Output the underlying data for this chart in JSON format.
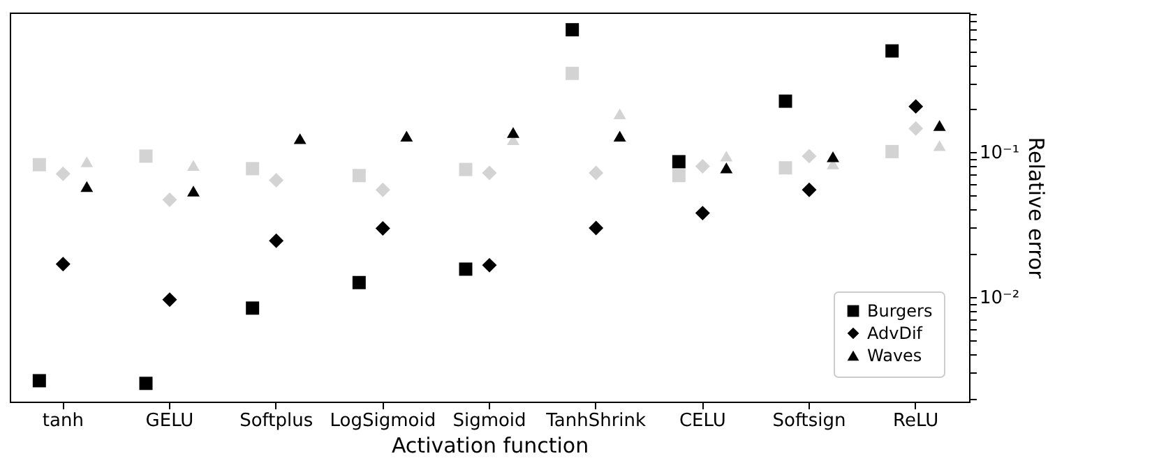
{
  "chart_data": {
    "type": "scatter",
    "xlabel": "Activation function",
    "ylabel": "Relative error",
    "categories": [
      "tanh",
      "GELU",
      "Softplus",
      "LogSigmoid",
      "Sigmoid",
      "TanhShrink",
      "CELU",
      "Softsign",
      "ReLU"
    ],
    "log": "y",
    "ylim": [
      0.0019,
      0.92
    ],
    "yticks": [
      {
        "value": 0.002,
        "label": null
      },
      {
        "value": 0.003,
        "label": null
      },
      {
        "value": 0.004,
        "label": null
      },
      {
        "value": 0.005,
        "label": null
      },
      {
        "value": 0.006,
        "label": null
      },
      {
        "value": 0.007,
        "label": null
      },
      {
        "value": 0.008,
        "label": null
      },
      {
        "value": 0.009,
        "label": null
      },
      {
        "value": 0.01,
        "label": "10⁻²"
      },
      {
        "value": 0.02,
        "label": null
      },
      {
        "value": 0.03,
        "label": null
      },
      {
        "value": 0.04,
        "label": null
      },
      {
        "value": 0.05,
        "label": null
      },
      {
        "value": 0.06,
        "label": null
      },
      {
        "value": 0.07,
        "label": null
      },
      {
        "value": 0.08,
        "label": null
      },
      {
        "value": 0.09,
        "label": null
      },
      {
        "value": 0.1,
        "label": "10⁻¹"
      },
      {
        "value": 0.2,
        "label": null
      },
      {
        "value": 0.3,
        "label": null
      },
      {
        "value": 0.4,
        "label": null
      },
      {
        "value": 0.5,
        "label": null
      },
      {
        "value": 0.6,
        "label": null
      },
      {
        "value": 0.7,
        "label": null
      },
      {
        "value": 0.8,
        "label": null
      },
      {
        "value": 0.9,
        "label": null
      }
    ],
    "grid": false,
    "legend": "bottom right",
    "series": [
      {
        "color": "#d3d3d3",
        "marker": "square",
        "values": [
          0.082,
          0.094,
          0.077,
          0.069,
          0.076,
          0.35,
          0.069,
          0.078,
          0.101
        ]
      },
      {
        "color": "#d3d3d3",
        "marker": "diamond",
        "values": [
          0.071,
          0.047,
          0.064,
          0.055,
          0.072,
          0.072,
          0.08,
          0.094,
          0.146
        ]
      },
      {
        "color": "#d3d3d3",
        "marker": "triangle",
        "values": [
          0.086,
          0.081,
          null,
          null,
          0.122,
          0.184,
          0.094,
          0.083,
          0.111
        ]
      },
      {
        "name": "Burgers",
        "color": "#000000",
        "marker": "square",
        "values": [
          0.00265,
          0.00254,
          0.0084,
          0.0126,
          0.0156,
          0.7,
          0.086,
          0.225,
          0.5
        ]
      },
      {
        "name": "AdvDif",
        "color": "#000000",
        "marker": "diamond",
        "values": [
          0.0169,
          0.0096,
          0.0245,
          0.0298,
          0.0166,
          0.03,
          0.038,
          0.055,
          0.207
        ]
      },
      {
        "name": "Waves",
        "color": "#000000",
        "marker": "triangle",
        "values": [
          0.058,
          0.054,
          0.124,
          0.129,
          0.137,
          0.129,
          0.078,
          0.093,
          0.153
        ]
      }
    ]
  }
}
